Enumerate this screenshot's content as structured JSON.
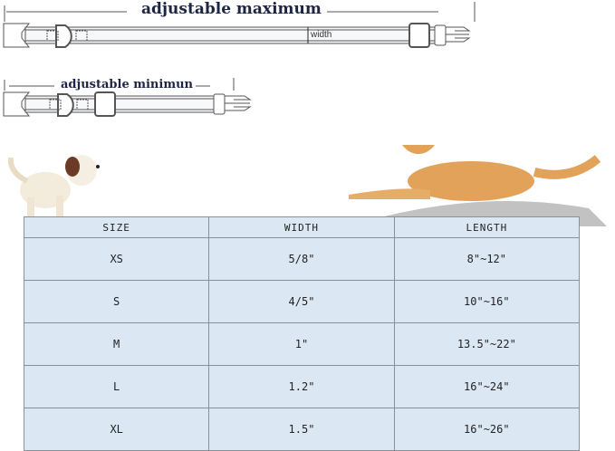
{
  "diagram": {
    "max_label": "adjustable maximum",
    "min_label": "adjustable minimun",
    "width_label": "width"
  },
  "table": {
    "headers": [
      "SIZE",
      "WIDTH",
      "LENGTH"
    ],
    "rows": [
      [
        "XS",
        "5/8\"",
        "8\"~12\""
      ],
      [
        "S",
        "4/5\"",
        "10\"~16\""
      ],
      [
        "M",
        "1\"",
        "13.5\"~22\""
      ],
      [
        "L",
        "1.2\"",
        "16\"~24\""
      ],
      [
        "XL",
        "1.5\"",
        "16\"~26\""
      ]
    ]
  },
  "colors": {
    "table_bg": "#dbe8f4",
    "title": "#1c2544",
    "dog_gold": "#e2a25a"
  }
}
